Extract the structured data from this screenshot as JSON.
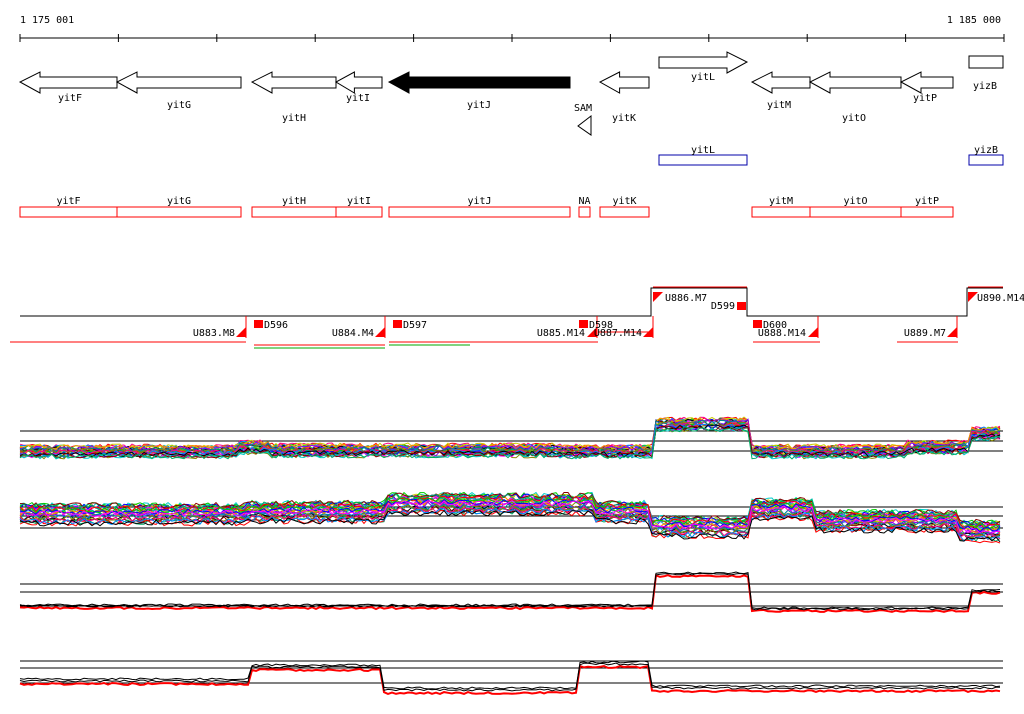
{
  "ruler": {
    "start_label": "1 175 001",
    "end_label": "1 185 000"
  },
  "genes": [
    {
      "name": "yitF",
      "strand": "-",
      "highlight": false
    },
    {
      "name": "yitG",
      "strand": "-",
      "highlight": false
    },
    {
      "name": "yitH",
      "strand": "-",
      "highlight": false
    },
    {
      "name": "yitI",
      "strand": "-",
      "highlight": false
    },
    {
      "name": "yitJ",
      "strand": "-",
      "highlight": true
    },
    {
      "name": "yitK",
      "strand": "-",
      "highlight": false
    },
    {
      "name": "yitL",
      "strand": "+",
      "highlight": false
    },
    {
      "name": "yitM",
      "strand": "-",
      "highlight": false
    },
    {
      "name": "yitO",
      "strand": "-",
      "highlight": false
    },
    {
      "name": "yitP",
      "strand": "-",
      "highlight": false
    },
    {
      "name": "yizB",
      "strand": "+",
      "highlight": false
    }
  ],
  "riboswitch": {
    "name": "SAM"
  },
  "forward_transcripts": [
    "yitL",
    "yizB"
  ],
  "reverse_transcripts": [
    "yitF",
    "yitG",
    "yitH",
    "yitI",
    "yitJ",
    "NA",
    "yitK",
    "yitM",
    "yitO",
    "yitP"
  ],
  "segments": {
    "upstream": [
      "U883.M8",
      "U884.M4",
      "U885.M14",
      "U887.M14",
      "U886.M7",
      "U888.M14",
      "U889.M7",
      "U890.M14"
    ],
    "downstream": [
      "D596",
      "D597",
      "D598",
      "D599",
      "D600"
    ]
  },
  "colors": {
    "reverse_strand": "#ff0000",
    "forward_strand": "#0000aa",
    "highlight_gene": "#000000",
    "segment_marker": "#ff0000",
    "profile_forward": "#000000",
    "profile_reverse": "#ff0000"
  }
}
